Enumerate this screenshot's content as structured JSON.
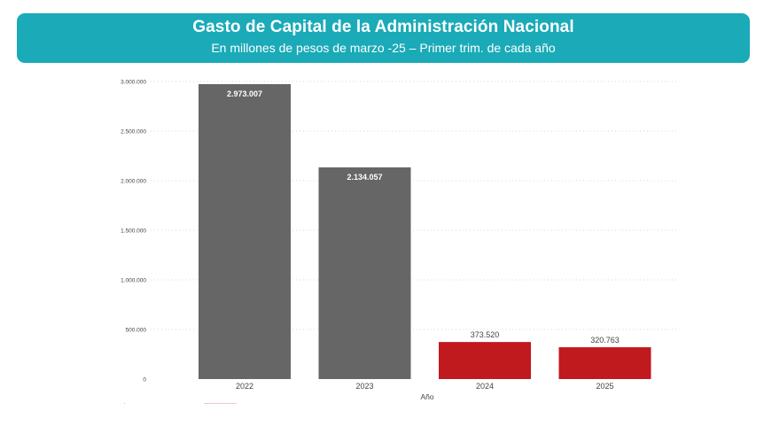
{
  "header": {
    "title": "Gasto de Capital de la Administración Nacional",
    "subtitle": "En millones de pesos de marzo -25 – Primer trim. de cada año"
  },
  "colors": {
    "banner": "#1aaab8",
    "gray_bar": "#666666",
    "red_bar": "#c0191e",
    "gridline": "#d9d9d9",
    "tick_text": "#444444"
  },
  "chart_data": {
    "type": "bar",
    "title": "Gasto de Capital de la Administración Nacional",
    "subtitle": "En millones de pesos de marzo -25 – Primer trim. de cada año",
    "xlabel": "Año",
    "ylabel": "",
    "categories": [
      "2022",
      "2023",
      "2024",
      "2025"
    ],
    "values": [
      2973007,
      2134057,
      373520,
      320763
    ],
    "value_labels": [
      "2.973.007",
      "2.134.057",
      "373.520",
      "320.763"
    ],
    "bar_colors": [
      "#666666",
      "#666666",
      "#c0191e",
      "#c0191e"
    ],
    "ylim": [
      0,
      3000000
    ],
    "yticks": [
      0,
      500000,
      1000000,
      1500000,
      2000000,
      2500000,
      3000000
    ],
    "ytick_labels": [
      "0",
      "500.000",
      "1.000.000",
      "1.500.000",
      "2.000.000",
      "2.500.000",
      "3.000.000"
    ],
    "grid": true,
    "legend": "none"
  }
}
